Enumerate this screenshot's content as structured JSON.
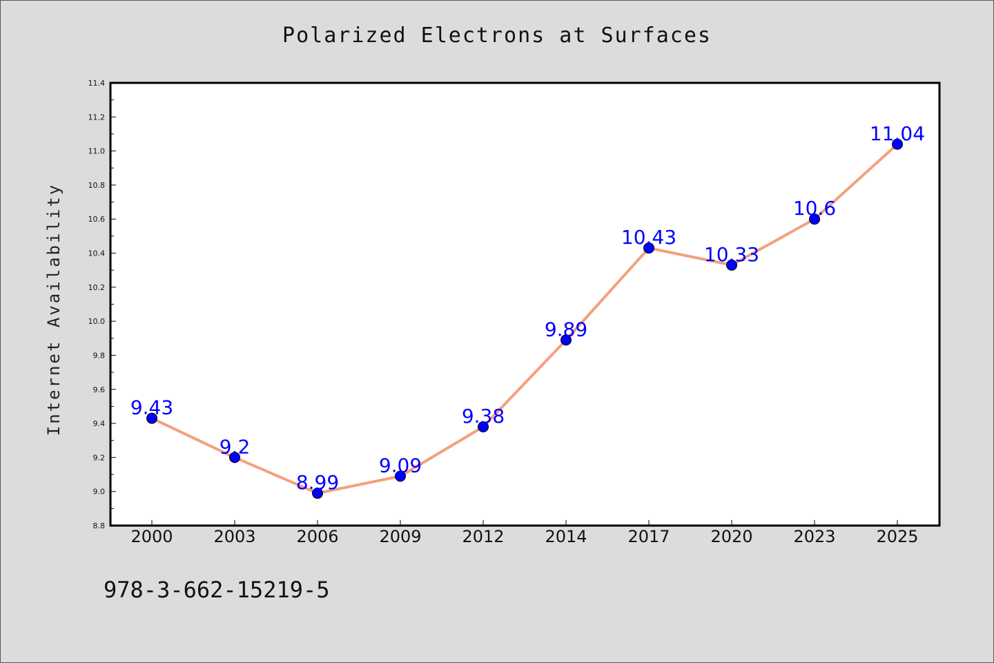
{
  "chart_data": {
    "type": "line",
    "title": "Polarized Electrons at Surfaces",
    "xlabel": "",
    "ylabel": "Internet Availability",
    "categories": [
      "2000",
      "2003",
      "2006",
      "2009",
      "2012",
      "2014",
      "2017",
      "2020",
      "2023",
      "2025"
    ],
    "series": [
      {
        "values": [
          9.43,
          9.2,
          8.99,
          9.09,
          9.38,
          9.89,
          10.43,
          10.33,
          10.6,
          11.04
        ]
      }
    ],
    "data_labels": [
      "9.43",
      "9.2",
      "8.99",
      "9.09",
      "9.38",
      "9.89",
      "10.43",
      "10.33",
      "10.6",
      "11.04"
    ],
    "y_ticks": [
      "8.8",
      "9.0",
      "9.2",
      "9.4",
      "9.6",
      "9.8",
      "10.0",
      "10.2",
      "10.4",
      "10.6",
      "10.8",
      "11.0",
      "11.2",
      "11.4"
    ],
    "ylim": [
      8.8,
      11.4
    ],
    "grid": false,
    "line_color": "#f4a07e",
    "marker_color": "#0000ff",
    "label_color": "#0000ff",
    "background_color": "#dcdcdc",
    "plot_background": "#ffffff"
  },
  "footer": {
    "isbn": "978-3-662-15219-5"
  }
}
